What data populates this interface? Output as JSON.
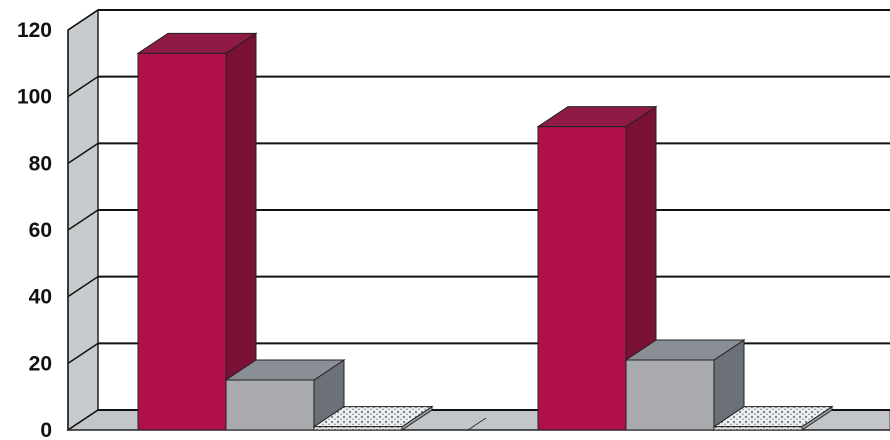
{
  "chart_data": {
    "type": "bar",
    "title": "",
    "xlabel": "",
    "ylabel": "",
    "categories": [
      "",
      ""
    ],
    "series": [
      {
        "values": [
          113,
          91
        ]
      },
      {
        "values": [
          15,
          21
        ]
      },
      {
        "values": [
          1,
          1
        ]
      }
    ],
    "ylim": [
      0,
      120
    ],
    "yticks": [
      0,
      20,
      40,
      60,
      80,
      100,
      120
    ],
    "grid": true,
    "legend": "none",
    "three_d": true,
    "colors": {
      "series_0_front": "#b0104a",
      "series_0_side": "#7a1035",
      "series_0_top": "#8f1a45",
      "series_1_front": "#a8aaad",
      "series_1_side": "#6c7178",
      "series_1_top": "#8a8f96",
      "series_2_front": "#e4e6e8",
      "series_2_side": "#9ea2a6",
      "series_2_top": "#d6d9dc",
      "wall": "#c8cbce",
      "floor": "#c3c6c9",
      "grid": "#111111"
    }
  }
}
